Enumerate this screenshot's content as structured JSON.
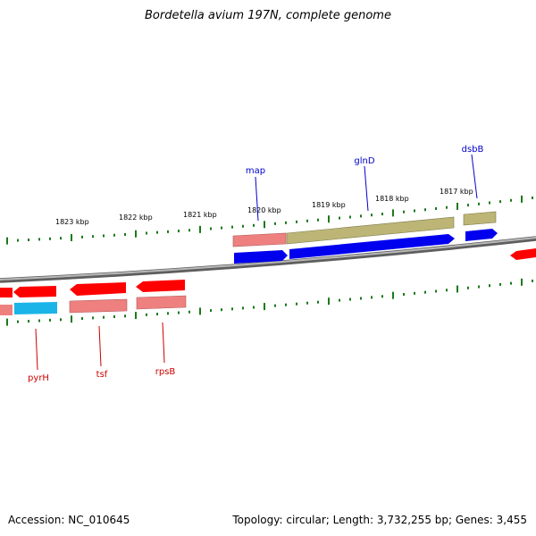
{
  "title": "Bordetella avium 197N, complete genome",
  "accession": "Accession: NC_010645",
  "stats": "Topology: circular; Length: 3,732,255 bp; Genes: 3,455",
  "colors": {
    "backbone": "#8a8a8a",
    "tick": "#1a7a1a",
    "cds_red": "#ff0000",
    "cds_blue": "#0000ee",
    "pink": "#ee7e7e",
    "olive": "#b5ad6e",
    "cyan": "#1ab4e8",
    "label_blue": "#0000cc",
    "label_red": "#cc0000"
  },
  "kbp_labels": [
    "1823 kbp",
    "1822 kbp",
    "1821 kbp",
    "1820 kbp",
    "1819 kbp",
    "1818 kbp",
    "1817 kbp"
  ],
  "gene_labels": [
    "map",
    "glnD",
    "dsbB",
    "pyrH",
    "tsf",
    "rpsB"
  ]
}
